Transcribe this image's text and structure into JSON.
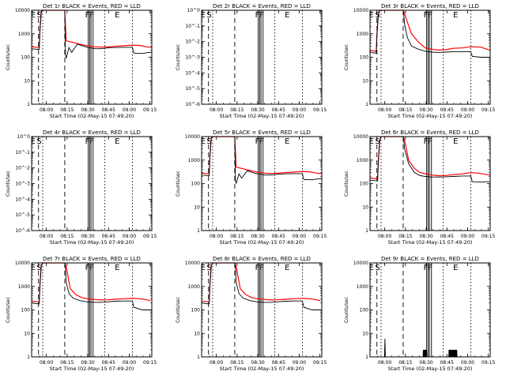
{
  "figure": {
    "panel_titles": [
      "Det 1r BLACK = Events, RED = LLD",
      "Det 2r BLACK = Events, RED = LLD",
      "Det 3r BLACK = Events, RED = LLD",
      "Det 4r BLACK = Events, RED = LLD",
      "Det 5r BLACK = Events, RED = LLD",
      "Det 6r BLACK = Events, RED = LLD",
      "Det 7r BLACK = Events, RED = LLD",
      "Det 8r BLACK = Events, RED = LLD",
      "Det 9r BLACK = Events, RED = LLD"
    ],
    "ylabel": "Counts/sec",
    "xlabel": "Start Time (02-May-15 07:49:20)",
    "x_ticks": [
      "08:00",
      "08:15",
      "08:30",
      "08:45",
      "09:00",
      "09:15"
    ],
    "y_ticks_counts": [
      "1",
      "10",
      "100",
      "1000",
      "10000"
    ],
    "y_ticks_empty": [
      "10^-6",
      "10^-5",
      "10^-4",
      "10^-3",
      "10^-2",
      "10^-1",
      "10^0"
    ],
    "markers": [
      "E",
      "S",
      "FF",
      "E"
    ],
    "colors": {
      "events": "#000000",
      "lld": "#ff0000"
    }
  },
  "chart_data": [
    {
      "type": "line",
      "title": "Det 1r BLACK = Events, RED = LLD",
      "xlabel": "Start Time (02-May-15 07:49:20)",
      "ylabel": "Counts/sec",
      "y_scale": "log",
      "ylim": [
        1,
        10000
      ],
      "x_unit": "minutes after 07:49:20",
      "xlim": [
        0,
        87
      ],
      "series": [
        {
          "name": "BLACK = Events",
          "x": [
            0,
            5,
            5.5,
            6,
            7,
            8,
            24,
            24.5,
            25,
            27,
            29,
            33,
            38,
            41,
            46,
            50,
            55,
            60,
            67,
            73,
            74,
            80,
            85,
            87
          ],
          "y": [
            230,
            215,
            215,
            1200,
            8000,
            10000,
            10000,
            130,
            90,
            260,
            160,
            360,
            290,
            260,
            230,
            230,
            250,
            260,
            265,
            265,
            150,
            145,
            160,
            160
          ]
        },
        {
          "name": "RED = LLD",
          "x": [
            0,
            5,
            5.5,
            6,
            7,
            8,
            24,
            25,
            30,
            35,
            40,
            45,
            50,
            55,
            60,
            67,
            73,
            78,
            83,
            87
          ],
          "y": [
            280,
            260,
            260,
            1500,
            9000,
            10000,
            10000,
            500,
            430,
            360,
            310,
            280,
            270,
            275,
            290,
            310,
            330,
            320,
            280,
            260
          ]
        }
      ]
    },
    {
      "type": "line",
      "title": "Det 2r BLACK = Events, RED = LLD",
      "xlabel": "Start Time (02-May-15 07:49:20)",
      "ylabel": "Counts/sec",
      "y_scale": "log",
      "ylim": [
        1e-06,
        1
      ],
      "xlim": [
        0,
        87
      ],
      "series": []
    },
    {
      "type": "line",
      "title": "Det 3r BLACK = Events, RED = LLD",
      "xlabel": "Start Time (02-May-15 07:49:20)",
      "ylabel": "Counts/sec",
      "y_scale": "log",
      "ylim": [
        1,
        10000
      ],
      "xlim": [
        0,
        87
      ],
      "series": [
        {
          "name": "BLACK = Events",
          "x": [
            0,
            4,
            4.5,
            5,
            6,
            7,
            24,
            24.5,
            25,
            27,
            30,
            35,
            40,
            45,
            50,
            55,
            60,
            67,
            73,
            74,
            80,
            86
          ],
          "y": [
            160,
            150,
            150,
            800,
            6000,
            10000,
            10000,
            6000,
            2500,
            700,
            300,
            220,
            180,
            165,
            160,
            165,
            170,
            170,
            175,
            110,
            100,
            100
          ]
        },
        {
          "name": "RED = LLD",
          "x": [
            0,
            4,
            4.5,
            5,
            6,
            7,
            24,
            25,
            30,
            35,
            40,
            45,
            50,
            55,
            60,
            67,
            73,
            80,
            86
          ],
          "y": [
            190,
            180,
            180,
            900,
            7000,
            10000,
            10000,
            7000,
            1000,
            450,
            250,
            220,
            200,
            210,
            240,
            250,
            280,
            270,
            210
          ]
        }
      ]
    },
    {
      "type": "line",
      "title": "Det 4r BLACK = Events, RED = LLD",
      "xlabel": "Start Time (02-May-15 07:49:20)",
      "ylabel": "Counts/sec",
      "y_scale": "log",
      "ylim": [
        1e-06,
        1
      ],
      "xlim": [
        0,
        87
      ],
      "series": []
    },
    {
      "type": "line",
      "title": "Det 5r BLACK = Events, RED = LLD",
      "xlabel": "Start Time (02-May-15 07:49:20)",
      "ylabel": "Counts/sec",
      "y_scale": "log",
      "ylim": [
        1,
        10000
      ],
      "xlim": [
        0,
        87
      ],
      "series": [
        {
          "name": "BLACK = Events",
          "x": [
            0,
            5,
            5.5,
            6,
            7,
            8,
            24,
            24.5,
            25,
            27,
            29,
            33,
            38,
            41,
            46,
            50,
            55,
            60,
            67,
            73,
            74,
            80,
            85,
            87
          ],
          "y": [
            230,
            215,
            215,
            1200,
            8000,
            10000,
            10000,
            140,
            100,
            260,
            170,
            350,
            280,
            260,
            230,
            230,
            250,
            260,
            265,
            265,
            150,
            145,
            160,
            160
          ]
        },
        {
          "name": "RED = LLD",
          "x": [
            0,
            5,
            5.5,
            6,
            7,
            8,
            24,
            25,
            30,
            35,
            40,
            45,
            50,
            55,
            60,
            67,
            73,
            78,
            83,
            87
          ],
          "y": [
            280,
            260,
            260,
            1500,
            9000,
            10000,
            10000,
            500,
            430,
            360,
            310,
            280,
            270,
            275,
            290,
            310,
            330,
            320,
            280,
            260
          ]
        }
      ]
    },
    {
      "type": "line",
      "title": "Det 6r BLACK = Events, RED = LLD",
      "xlabel": "Start Time (02-May-15 07:49:20)",
      "ylabel": "Counts/sec",
      "y_scale": "log",
      "ylim": [
        1,
        10000
      ],
      "xlim": [
        0,
        87
      ],
      "series": [
        {
          "name": "BLACK = Events",
          "x": [
            0,
            5,
            5.5,
            6,
            7,
            8,
            24,
            24.5,
            25,
            28,
            32,
            36,
            40,
            45,
            50,
            55,
            60,
            67,
            73,
            74,
            80,
            85,
            87
          ],
          "y": [
            140,
            130,
            130,
            800,
            6000,
            10000,
            10000,
            6000,
            3000,
            700,
            300,
            220,
            200,
            190,
            190,
            195,
            200,
            210,
            210,
            120,
            115,
            120,
            120
          ]
        },
        {
          "name": "RED = LLD",
          "x": [
            0,
            5,
            5.5,
            6,
            7,
            8,
            24,
            25,
            28,
            32,
            36,
            40,
            45,
            50,
            55,
            60,
            67,
            73,
            78,
            83,
            87
          ],
          "y": [
            170,
            160,
            160,
            900,
            7000,
            10000,
            10000,
            7000,
            1000,
            450,
            300,
            260,
            230,
            215,
            220,
            240,
            260,
            290,
            280,
            250,
            230
          ]
        }
      ]
    },
    {
      "type": "line",
      "title": "Det 7r BLACK = Events, RED = LLD",
      "xlabel": "Start Time (02-May-15 07:49:20)",
      "ylabel": "Counts/sec",
      "y_scale": "log",
      "ylim": [
        1,
        10000
      ],
      "xlim": [
        0,
        87
      ],
      "series": [
        {
          "name": "BLACK = Events",
          "x": [
            0,
            5,
            5.5,
            6,
            7,
            8,
            24,
            24.5,
            25,
            27,
            30,
            35,
            40,
            45,
            50,
            55,
            60,
            67,
            73,
            74,
            80,
            86
          ],
          "y": [
            200,
            180,
            180,
            1000,
            7000,
            10000,
            10000,
            6000,
            1500,
            500,
            320,
            250,
            220,
            210,
            210,
            220,
            235,
            240,
            240,
            130,
            100,
            100
          ]
        },
        {
          "name": "RED = LLD",
          "x": [
            0,
            5,
            5.5,
            6,
            7,
            8,
            24,
            25,
            28,
            32,
            36,
            40,
            45,
            50,
            55,
            60,
            67,
            73,
            80,
            86
          ],
          "y": [
            240,
            220,
            220,
            1200,
            8000,
            10000,
            10000,
            7000,
            800,
            450,
            340,
            300,
            280,
            265,
            270,
            285,
            300,
            310,
            290,
            250
          ]
        }
      ]
    },
    {
      "type": "line",
      "title": "Det 8r BLACK = Events, RED = LLD",
      "xlabel": "Start Time (02-May-15 07:49:20)",
      "ylabel": "Counts/sec",
      "y_scale": "log",
      "ylim": [
        1,
        10000
      ],
      "xlim": [
        0,
        87
      ],
      "series": [
        {
          "name": "BLACK = Events",
          "x": [
            0,
            5,
            5.5,
            6,
            7,
            8,
            24,
            24.5,
            25,
            27,
            30,
            35,
            40,
            45,
            50,
            55,
            60,
            67,
            73,
            74,
            80,
            86
          ],
          "y": [
            200,
            180,
            180,
            1000,
            7000,
            10000,
            10000,
            6000,
            1500,
            500,
            320,
            250,
            220,
            210,
            210,
            220,
            235,
            240,
            240,
            130,
            100,
            100
          ]
        },
        {
          "name": "RED = LLD",
          "x": [
            0,
            5,
            5.5,
            6,
            7,
            8,
            24,
            25,
            28,
            32,
            36,
            40,
            45,
            50,
            55,
            60,
            67,
            73,
            80,
            86
          ],
          "y": [
            240,
            220,
            220,
            1200,
            8000,
            10000,
            10000,
            7000,
            800,
            450,
            340,
            300,
            280,
            265,
            270,
            285,
            300,
            310,
            290,
            250
          ]
        }
      ]
    },
    {
      "type": "line",
      "title": "Det 9r BLACK = Events, RED = LLD",
      "xlabel": "Start Time (02-May-15 07:49:20)",
      "ylabel": "Counts/sec",
      "y_scale": "log",
      "ylim": [
        1,
        10000
      ],
      "xlim": [
        0,
        87
      ],
      "series": [
        {
          "name": "BLACK = Events",
          "x": [
            0,
            10.5,
            10.8,
            11.1,
            11.4,
            38.4,
            38.6,
            38.8,
            39.0,
            39.2,
            39.4,
            39.6,
            39.8,
            40.0,
            40.2,
            40.4,
            40.6,
            40.8,
            41.0,
            41.2,
            41.4,
            57,
            57.2,
            57.4,
            57.6,
            57.8,
            58.0,
            58.2,
            58.4,
            58.6,
            58.8,
            59.0,
            59.2,
            59.4,
            59.6,
            59.8,
            60.0,
            60.2,
            60.4,
            60.6,
            60.8,
            61.0,
            61.2,
            61.4,
            61.6,
            61.8,
            62.0,
            62.2,
            62.4,
            62.6,
            62.8,
            63.0,
            87
          ],
          "y": [
            1,
            1,
            6,
            1,
            1,
            1,
            2,
            1,
            2,
            1,
            2,
            1,
            2,
            1,
            2,
            1,
            2,
            1,
            2,
            1,
            1,
            1,
            2,
            1,
            2,
            1,
            2,
            1,
            2,
            1,
            2,
            1,
            2,
            1,
            2,
            1,
            2,
            1,
            2,
            1,
            2,
            1,
            2,
            1,
            2,
            1,
            2,
            1,
            2,
            1,
            2,
            1,
            1
          ]
        }
      ]
    }
  ]
}
